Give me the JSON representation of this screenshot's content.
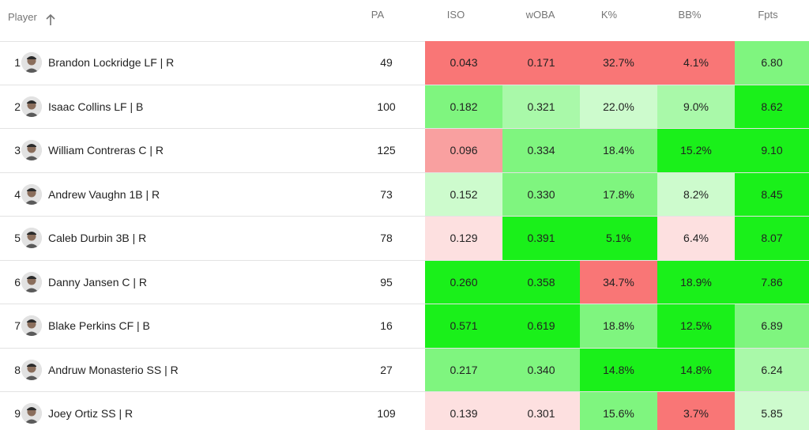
{
  "headers": {
    "player": "Player",
    "pa": "PA",
    "iso": "ISO",
    "woba": "wOBA",
    "k": "K%",
    "bb": "BB%",
    "fpts": "Fpts"
  },
  "sort_icon": "arrow-up-icon",
  "colors": {
    "red": "#f97676",
    "light_red": "#f9a0a0",
    "pale_red": "#fde0e0",
    "bright_green": "#1af01a",
    "green": "#7ff57f",
    "light_green": "#a9f9a9",
    "pale_green": "#cdfbcd"
  },
  "rows": [
    {
      "rank": "1",
      "name": "Brandon Lockridge LF | R",
      "pa": "49",
      "iso": "0.043",
      "woba": "0.171",
      "k": "32.7%",
      "bb": "4.1%",
      "fpts": "6.80",
      "iso_color": "#f97676",
      "woba_color": "#f97676",
      "k_color": "#f97676",
      "bb_color": "#f97676",
      "fpts_color": "#7ff57f"
    },
    {
      "rank": "2",
      "name": "Isaac Collins LF | B",
      "pa": "100",
      "iso": "0.182",
      "woba": "0.321",
      "k": "22.0%",
      "bb": "9.0%",
      "fpts": "8.62",
      "iso_color": "#7ff57f",
      "woba_color": "#a9f9a9",
      "k_color": "#cdfbcd",
      "bb_color": "#a9f9a9",
      "fpts_color": "#1af01a"
    },
    {
      "rank": "3",
      "name": "William Contreras C | R",
      "pa": "125",
      "iso": "0.096",
      "woba": "0.334",
      "k": "18.4%",
      "bb": "15.2%",
      "fpts": "9.10",
      "iso_color": "#f9a0a0",
      "woba_color": "#7ff57f",
      "k_color": "#7ff57f",
      "bb_color": "#1af01a",
      "fpts_color": "#1af01a"
    },
    {
      "rank": "4",
      "name": "Andrew Vaughn 1B | R",
      "pa": "73",
      "iso": "0.152",
      "woba": "0.330",
      "k": "17.8%",
      "bb": "8.2%",
      "fpts": "8.45",
      "iso_color": "#cdfbcd",
      "woba_color": "#7ff57f",
      "k_color": "#7ff57f",
      "bb_color": "#cdfbcd",
      "fpts_color": "#1af01a"
    },
    {
      "rank": "5",
      "name": "Caleb Durbin 3B | R",
      "pa": "78",
      "iso": "0.129",
      "woba": "0.391",
      "k": "5.1%",
      "bb": "6.4%",
      "fpts": "8.07",
      "iso_color": "#fde0e0",
      "woba_color": "#1af01a",
      "k_color": "#1af01a",
      "bb_color": "#fde0e0",
      "fpts_color": "#1af01a"
    },
    {
      "rank": "6",
      "name": "Danny Jansen C | R",
      "pa": "95",
      "iso": "0.260",
      "woba": "0.358",
      "k": "34.7%",
      "bb": "18.9%",
      "fpts": "7.86",
      "iso_color": "#1af01a",
      "woba_color": "#1af01a",
      "k_color": "#f97676",
      "bb_color": "#1af01a",
      "fpts_color": "#1af01a"
    },
    {
      "rank": "7",
      "name": "Blake Perkins CF | B",
      "pa": "16",
      "iso": "0.571",
      "woba": "0.619",
      "k": "18.8%",
      "bb": "12.5%",
      "fpts": "6.89",
      "iso_color": "#1af01a",
      "woba_color": "#1af01a",
      "k_color": "#7ff57f",
      "bb_color": "#1af01a",
      "fpts_color": "#7ff57f"
    },
    {
      "rank": "8",
      "name": "Andruw Monasterio SS | R",
      "pa": "27",
      "iso": "0.217",
      "woba": "0.340",
      "k": "14.8%",
      "bb": "14.8%",
      "fpts": "6.24",
      "iso_color": "#7ff57f",
      "woba_color": "#7ff57f",
      "k_color": "#1af01a",
      "bb_color": "#1af01a",
      "fpts_color": "#a9f9a9"
    },
    {
      "rank": "9",
      "name": "Joey Ortiz SS | R",
      "pa": "109",
      "iso": "0.139",
      "woba": "0.301",
      "k": "15.6%",
      "bb": "3.7%",
      "fpts": "5.85",
      "iso_color": "#fde0e0",
      "woba_color": "#fde0e0",
      "k_color": "#7ff57f",
      "bb_color": "#f97676",
      "fpts_color": "#cdfbcd"
    }
  ]
}
